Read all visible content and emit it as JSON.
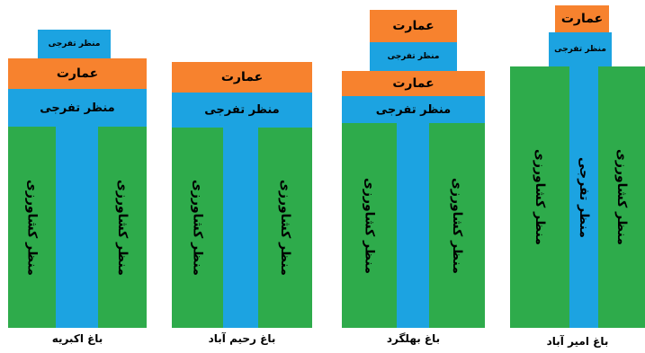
{
  "gardens": [
    {
      "name": "باغ اکبریه",
      "top_small_label": "منظر تفرجی",
      "building_label": "عمارت",
      "band_label": "منظر تفرجی",
      "left_label": "منظر کشاورزی",
      "right_label": "منظر کشاورزی"
    },
    {
      "name": "باغ رحیم آباد",
      "building_label": "عمارت",
      "band_label": "منظر تفرجی",
      "left_label": "منظر کشاورزی",
      "right_label": "منظر کشاورزی"
    },
    {
      "name": "باغ بهلگرد",
      "top_building_label": "عمارت",
      "top_small_label": "منظر تفرجی",
      "building_label": "عمارت",
      "band_label": "منظر تفرجی",
      "left_label": "منظر کشاورزی",
      "right_label": "منظر کشاورزی"
    },
    {
      "name": "باغ امیر آباد",
      "building_label": "عمارت",
      "small_label": "منظر تفرجی",
      "left_label": "منظر کشاورزی",
      "center_label": "منظر تفرجی",
      "right_label": "منظر کشاورزی"
    }
  ],
  "colors": {
    "agriculture": "#2eab4b",
    "recreation": "#1ca3e1",
    "building": "#f7822e"
  }
}
